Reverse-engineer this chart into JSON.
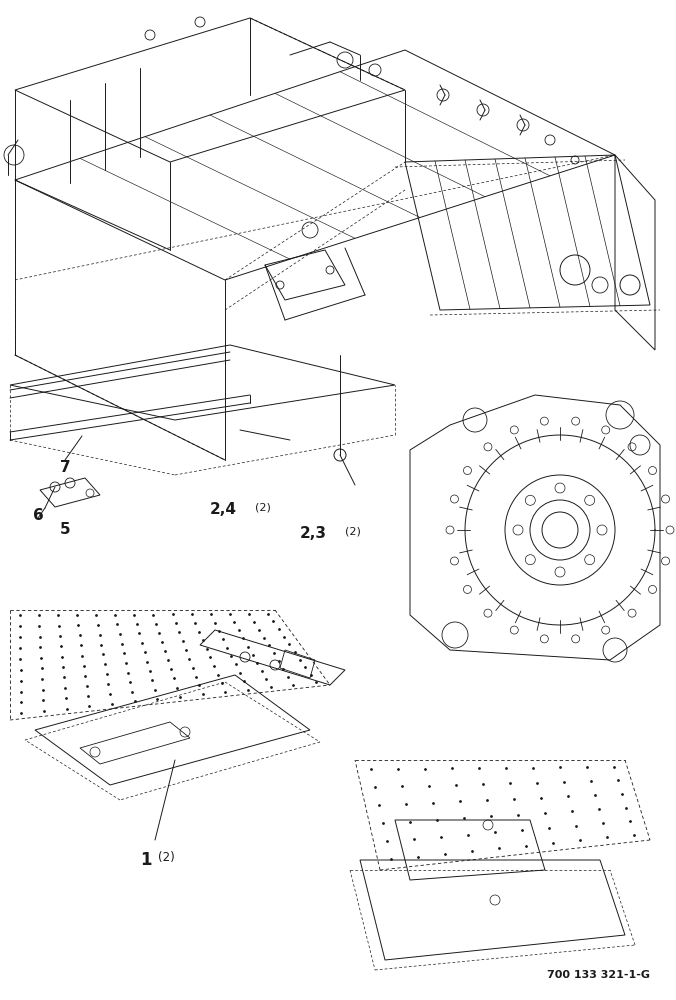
{
  "background_color": "#ffffff",
  "part_number": "700 133 321-1-G",
  "fig_width": 6.76,
  "fig_height": 10.0,
  "dpi": 100,
  "lw": 0.7,
  "color": "#1a1a1a"
}
